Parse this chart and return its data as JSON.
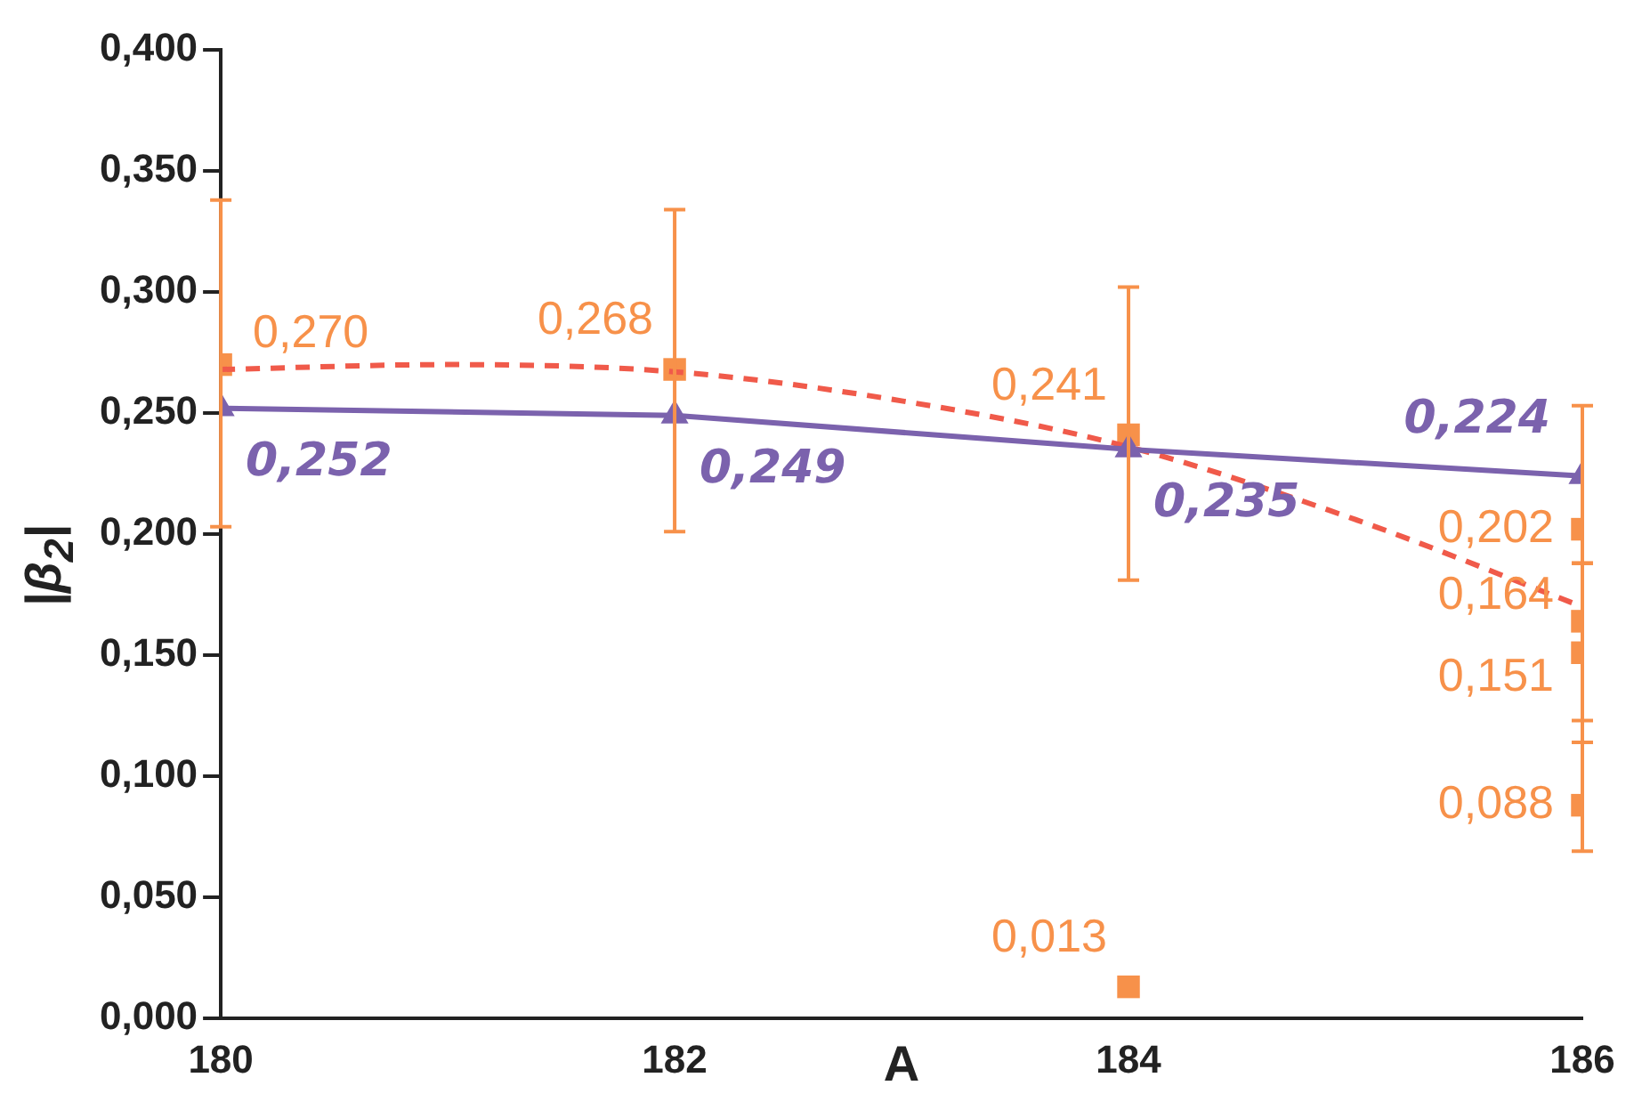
{
  "chart_data": {
    "type": "scatter",
    "xlabel": "A",
    "ylabel": "|β$_{2}$|",
    "xlim": [
      180,
      186
    ],
    "xticks": [
      180,
      182,
      184,
      186
    ],
    "ylim": [
      0,
      0.4
    ],
    "yticks": [
      {
        "value": 0,
        "label": "0,000"
      },
      {
        "value": 0.05,
        "label": "0,050"
      },
      {
        "value": 0.1,
        "label": "0,100"
      },
      {
        "value": 0.15,
        "label": "0,150"
      },
      {
        "value": 0.2,
        "label": "0,200"
      },
      {
        "value": 0.25,
        "label": "0,250"
      },
      {
        "value": 0.3,
        "label": "0,300"
      },
      {
        "value": 0.35,
        "label": "0,350"
      },
      {
        "value": 0.4,
        "label": "0,400"
      }
    ],
    "grid": false,
    "legend": false,
    "series": [
      {
        "type": "line",
        "color": "#7b62ad",
        "marker": "triangle",
        "line_style": "solid",
        "x": [
          180,
          182,
          184,
          186
        ],
        "values": [
          0.252,
          0.249,
          0.235,
          0.224
        ],
        "value_labels": [
          "0,252",
          "0,249",
          "0,235",
          "0,224"
        ]
      },
      {
        "type": "line",
        "color": "#f05a4a",
        "marker": "none",
        "line_style": "dashed",
        "x": [
          180,
          181,
          182,
          183,
          184,
          185,
          186
        ],
        "values": [
          0.268,
          0.27,
          0.267,
          0.255,
          0.236,
          0.206,
          0.17
        ]
      },
      {
        "type": "scatter",
        "color": "#f7914a",
        "marker": "square",
        "x": [
          180,
          182,
          184,
          184,
          186,
          186,
          186,
          186
        ],
        "values": [
          0.27,
          0.268,
          0.241,
          0.013,
          0.202,
          0.164,
          0.151,
          0.088
        ],
        "value_labels": [
          "0,270",
          "0,268",
          "0,241",
          "0,013",
          "0,202",
          "0,164",
          "0,151",
          "0,088"
        ],
        "errors": [
          [
            0.203,
            0.338
          ],
          [
            0.201,
            0.334
          ],
          [
            0.181,
            0.302
          ],
          null,
          [
            0.188,
            0.253
          ],
          [
            0.123,
            0.188
          ],
          [
            0.114,
            0.188
          ],
          [
            0.069,
            0.114
          ]
        ]
      }
    ]
  }
}
